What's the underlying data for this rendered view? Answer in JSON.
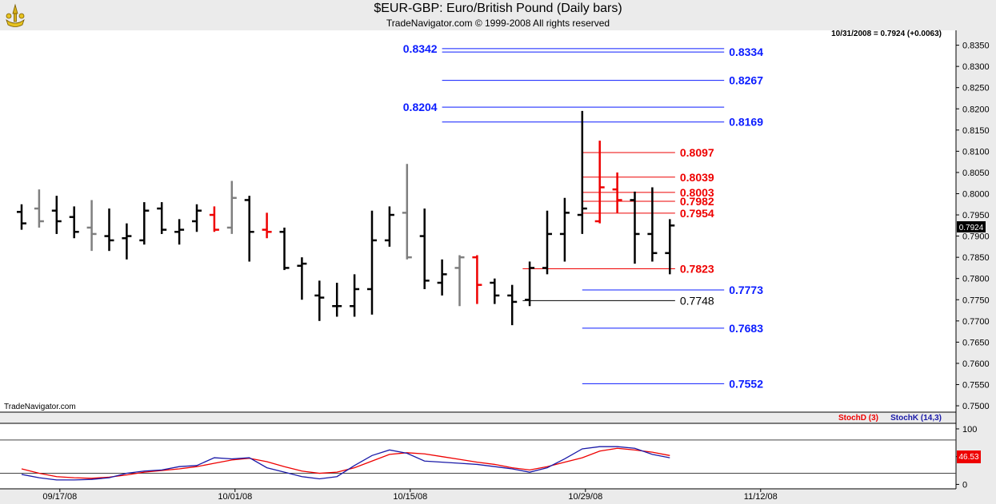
{
  "header": {
    "title": "$EUR-GBP:  Euro/British Pound  (Daily bars)",
    "copyright": "TradeNavigator.com © 1999-2008 All rights reserved"
  },
  "watermark": "TradeNavigator.com",
  "colors": {
    "black_bar": "#000000",
    "gray_bar": "#7f7f7f",
    "red_bar": "#ee0000",
    "blue_level": "#0b1cff",
    "red_level": "#ee0000"
  },
  "chart_data": [
    {
      "type": "ohlc",
      "price_readout": "10/31/2008 = 0.7924 (+0.0063)",
      "last_price_label": "0.7924",
      "ylim": [
        0.7485,
        0.8385
      ],
      "y_ticks": [
        "0.8350",
        "0.8300",
        "0.8250",
        "0.8200",
        "0.8150",
        "0.8100",
        "0.8050",
        "0.8000",
        "0.7950",
        "0.7900",
        "0.7850",
        "0.7800",
        "0.7750",
        "0.7700",
        "0.7650",
        "0.7600",
        "0.7550",
        "0.7500"
      ],
      "x_tick_labels": [
        "09/17/08",
        "10/01/08",
        "10/15/08",
        "10/29/08",
        "11/12/08"
      ],
      "bars": [
        {
          "o": 0.7957,
          "h": 0.7975,
          "l": 0.7915,
          "c": 0.793,
          "col": "black"
        },
        {
          "o": 0.7965,
          "h": 0.801,
          "l": 0.792,
          "c": 0.7935,
          "col": "gray"
        },
        {
          "o": 0.796,
          "h": 0.7995,
          "l": 0.7905,
          "c": 0.7935,
          "col": "black"
        },
        {
          "o": 0.7945,
          "h": 0.797,
          "l": 0.7895,
          "c": 0.791,
          "col": "black"
        },
        {
          "o": 0.792,
          "h": 0.7985,
          "l": 0.7865,
          "c": 0.7905,
          "col": "gray"
        },
        {
          "o": 0.79,
          "h": 0.7965,
          "l": 0.7865,
          "c": 0.789,
          "col": "black"
        },
        {
          "o": 0.7895,
          "h": 0.793,
          "l": 0.7845,
          "c": 0.79,
          "col": "black"
        },
        {
          "o": 0.789,
          "h": 0.798,
          "l": 0.788,
          "c": 0.796,
          "col": "black"
        },
        {
          "o": 0.7965,
          "h": 0.798,
          "l": 0.7905,
          "c": 0.7915,
          "col": "black"
        },
        {
          "o": 0.791,
          "h": 0.794,
          "l": 0.788,
          "c": 0.7915,
          "col": "black"
        },
        {
          "o": 0.7935,
          "h": 0.7975,
          "l": 0.791,
          "c": 0.796,
          "col": "black"
        },
        {
          "o": 0.795,
          "h": 0.797,
          "l": 0.791,
          "c": 0.7915,
          "col": "red"
        },
        {
          "o": 0.792,
          "h": 0.803,
          "l": 0.7905,
          "c": 0.799,
          "col": "gray"
        },
        {
          "o": 0.7985,
          "h": 0.7995,
          "l": 0.784,
          "c": 0.791,
          "col": "black"
        },
        {
          "o": 0.7915,
          "h": 0.7955,
          "l": 0.7895,
          "c": 0.791,
          "col": "red"
        },
        {
          "o": 0.791,
          "h": 0.792,
          "l": 0.782,
          "c": 0.7825,
          "col": "black"
        },
        {
          "o": 0.783,
          "h": 0.785,
          "l": 0.775,
          "c": 0.7835,
          "col": "black"
        },
        {
          "o": 0.776,
          "h": 0.7795,
          "l": 0.77,
          "c": 0.7755,
          "col": "black"
        },
        {
          "o": 0.7735,
          "h": 0.779,
          "l": 0.771,
          "c": 0.7735,
          "col": "black"
        },
        {
          "o": 0.7735,
          "h": 0.781,
          "l": 0.771,
          "c": 0.7775,
          "col": "black"
        },
        {
          "o": 0.7775,
          "h": 0.796,
          "l": 0.7715,
          "c": 0.789,
          "col": "black"
        },
        {
          "o": 0.789,
          "h": 0.797,
          "l": 0.7875,
          "c": 0.795,
          "col": "black"
        },
        {
          "o": 0.7955,
          "h": 0.807,
          "l": 0.7845,
          "c": 0.785,
          "col": "gray"
        },
        {
          "o": 0.79,
          "h": 0.7965,
          "l": 0.7775,
          "c": 0.7795,
          "col": "black"
        },
        {
          "o": 0.779,
          "h": 0.7845,
          "l": 0.776,
          "c": 0.781,
          "col": "black"
        },
        {
          "o": 0.7825,
          "h": 0.7855,
          "l": 0.7735,
          "c": 0.785,
          "col": "gray"
        },
        {
          "o": 0.785,
          "h": 0.7855,
          "l": 0.774,
          "c": 0.7785,
          "col": "red"
        },
        {
          "o": 0.779,
          "h": 0.78,
          "l": 0.774,
          "c": 0.776,
          "col": "black"
        },
        {
          "o": 0.776,
          "h": 0.7785,
          "l": 0.769,
          "c": 0.7745,
          "col": "black"
        },
        {
          "o": 0.775,
          "h": 0.784,
          "l": 0.7735,
          "c": 0.7825,
          "col": "black"
        },
        {
          "o": 0.7825,
          "h": 0.796,
          "l": 0.781,
          "c": 0.7905,
          "col": "black"
        },
        {
          "o": 0.7905,
          "h": 0.799,
          "l": 0.784,
          "c": 0.7955,
          "col": "black"
        },
        {
          "o": 0.795,
          "h": 0.8195,
          "l": 0.7905,
          "c": 0.7965,
          "col": "black"
        },
        {
          "o": 0.7935,
          "h": 0.8125,
          "l": 0.793,
          "c": 0.8015,
          "col": "red"
        },
        {
          "o": 0.801,
          "h": 0.805,
          "l": 0.7955,
          "c": 0.7985,
          "col": "red"
        },
        {
          "o": 0.7985,
          "h": 0.8005,
          "l": 0.7835,
          "c": 0.7905,
          "col": "black"
        },
        {
          "o": 0.7905,
          "h": 0.8015,
          "l": 0.784,
          "c": 0.786,
          "col": "black"
        },
        {
          "o": 0.786,
          "h": 0.794,
          "l": 0.781,
          "c": 0.7925,
          "col": "black"
        }
      ],
      "levels": [
        {
          "value": 0.8342,
          "label": "0.8342",
          "color": "blue",
          "x0_bar": 24,
          "x1_bar": 40.1,
          "label_side": "left"
        },
        {
          "value": 0.8334,
          "label": "0.8334",
          "color": "blue",
          "x0_bar": 24,
          "x1_bar": 40.1,
          "label_side": "right"
        },
        {
          "value": 0.8267,
          "label": "0.8267",
          "color": "blue",
          "x0_bar": 24,
          "x1_bar": 40.1,
          "label_side": "right"
        },
        {
          "value": 0.8204,
          "label": "0.8204",
          "color": "blue",
          "x0_bar": 24,
          "x1_bar": 40.1,
          "label_side": "left"
        },
        {
          "value": 0.8169,
          "label": "0.8169",
          "color": "blue",
          "x0_bar": 24,
          "x1_bar": 40.1,
          "label_side": "right"
        },
        {
          "value": 0.8097,
          "label": "0.8097",
          "color": "red",
          "x0_bar": 32,
          "x1_bar": 37.3,
          "label_side": "right"
        },
        {
          "value": 0.8039,
          "label": "0.8039",
          "color": "red",
          "x0_bar": 32,
          "x1_bar": 37.3,
          "label_side": "right"
        },
        {
          "value": 0.8003,
          "label": "0.8003",
          "color": "red",
          "x0_bar": 32,
          "x1_bar": 37.3,
          "label_side": "right"
        },
        {
          "value": 0.7982,
          "label": "0.7982",
          "color": "red",
          "x0_bar": 32,
          "x1_bar": 37.3,
          "label_side": "right"
        },
        {
          "value": 0.7954,
          "label": "0.7954",
          "color": "red",
          "x0_bar": 32,
          "x1_bar": 37.3,
          "label_side": "right"
        },
        {
          "value": 0.7823,
          "label": "0.7823",
          "color": "red",
          "x0_bar": 28.6,
          "x1_bar": 37.3,
          "label_side": "right"
        },
        {
          "value": 0.7773,
          "label": "0.7773",
          "color": "blue",
          "x0_bar": 32,
          "x1_bar": 40.1,
          "label_side": "right"
        },
        {
          "value": 0.7748,
          "label": "0.7748",
          "color": "black",
          "x0_bar": 28.6,
          "x1_bar": 37.3,
          "label_side": "right"
        },
        {
          "value": 0.7683,
          "label": "0.7683",
          "color": "blue",
          "x0_bar": 32,
          "x1_bar": 40.1,
          "label_side": "right"
        },
        {
          "value": 0.7552,
          "label": "0.7552",
          "color": "blue",
          "x0_bar": 32,
          "x1_bar": 40.1,
          "label_side": "right"
        }
      ]
    },
    {
      "type": "line",
      "legend": [
        {
          "name": "StochD (3)",
          "color": "#ee0000"
        },
        {
          "name": "StochK (14,3)",
          "color": "#1a1aa8"
        }
      ],
      "last_value_label": "46.53",
      "ylim": [
        -8,
        110
      ],
      "y_ticks": [
        "100",
        "50",
        "0"
      ],
      "ref_lines": [
        80,
        20
      ],
      "series": [
        {
          "name": "StochD (3)",
          "color": "#ee0000",
          "values": [
            28,
            20,
            14,
            12,
            11,
            13,
            17,
            22,
            25,
            28,
            32,
            38,
            44,
            47,
            41,
            32,
            24,
            20,
            22,
            30,
            42,
            54,
            57,
            55,
            50,
            45,
            40,
            36,
            30,
            26,
            32,
            40,
            48,
            60,
            65,
            62,
            58,
            52
          ]
        },
        {
          "name": "StochK (14,3)",
          "color": "#1a1aa8",
          "values": [
            18,
            12,
            8,
            8,
            9,
            12,
            20,
            24,
            26,
            32,
            34,
            48,
            46,
            48,
            30,
            22,
            14,
            10,
            14,
            34,
            52,
            62,
            56,
            42,
            40,
            38,
            36,
            32,
            28,
            22,
            30,
            46,
            64,
            68,
            68,
            65,
            54,
            48
          ]
        }
      ]
    }
  ]
}
